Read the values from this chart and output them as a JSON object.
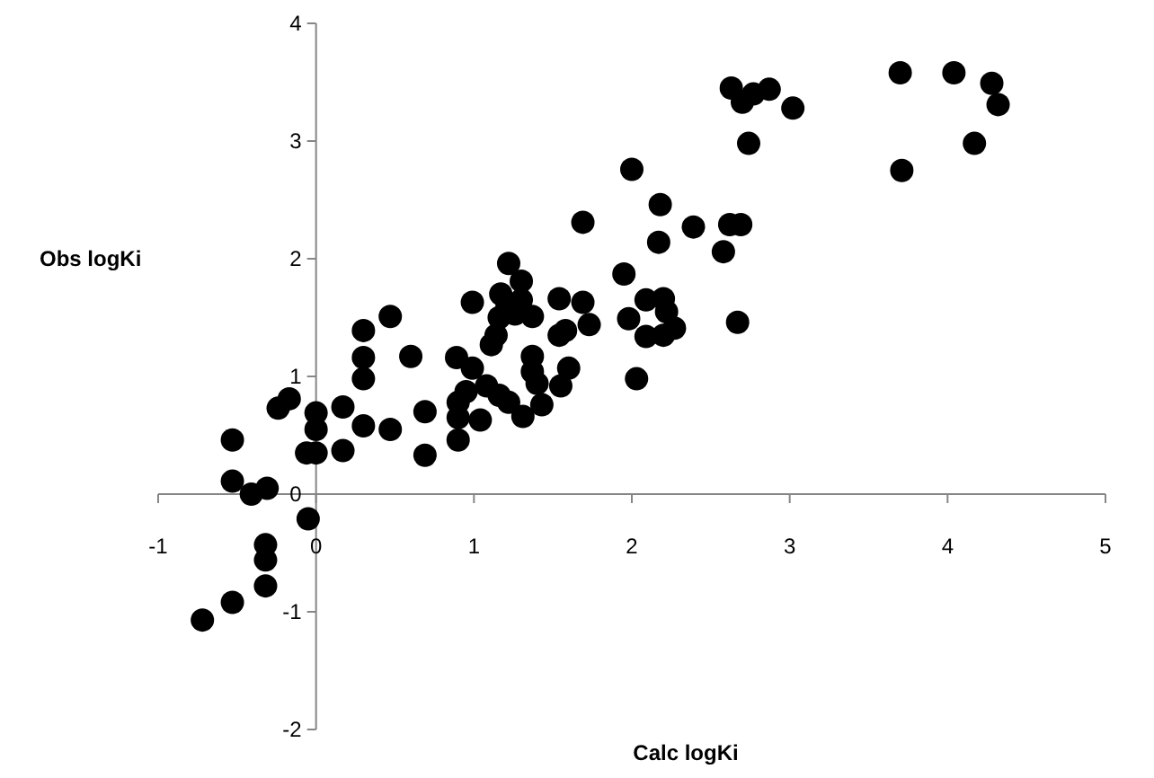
{
  "chart_data": {
    "type": "scatter",
    "xlabel": "Calc logKi",
    "ylabel": "Obs logKi",
    "xlim": [
      -1,
      5
    ],
    "ylim": [
      -2,
      4
    ],
    "xticks": [
      -1,
      0,
      1,
      2,
      3,
      4,
      5
    ],
    "yticks": [
      -2,
      -1,
      0,
      1,
      2,
      3,
      4
    ],
    "grid": false,
    "marker": "circle",
    "series": [
      {
        "color": "#000000",
        "x": [
          -0.72,
          -0.53,
          -0.32,
          -0.32,
          -0.32,
          -0.05,
          -0.53,
          -0.53,
          -0.41,
          -0.31,
          -0.24,
          -0.17,
          0,
          0,
          -0.06,
          0,
          0.17,
          0.17,
          0.3,
          0.3,
          0.3,
          0.3,
          0.47,
          0.47,
          0.6,
          0.69,
          0.69,
          0.89,
          0.9,
          0.9,
          0.9,
          0.95,
          0.99,
          0.99,
          1.04,
          1.08,
          1.16,
          1.22,
          1.31,
          1.43,
          1.37,
          1.37,
          1.4,
          1.55,
          1.6,
          1.54,
          1.58,
          1.54,
          1.69,
          1.73,
          1.11,
          1.14,
          1.16,
          1.17,
          1.22,
          1.3,
          1.3,
          1.37,
          1.26,
          1.21,
          1.95,
          1.98,
          2.09,
          2.2,
          2.22,
          2.27,
          2.09,
          2.2,
          2.03,
          2.17,
          2.58,
          2.67,
          2.18,
          2.0,
          1.69,
          2.39,
          2.62,
          2.69,
          2.63,
          2.7,
          2.77,
          2.87,
          3.02,
          2.74,
          3.7,
          4.04,
          4.28,
          4.32,
          4.17,
          3.71
        ],
        "values": [
          -1.07,
          -0.92,
          -0.78,
          -0.56,
          -0.43,
          -0.21,
          0.46,
          0.11,
          0.0,
          0.05,
          0.73,
          0.81,
          0.69,
          0.55,
          0.35,
          0.35,
          0.74,
          0.37,
          1.39,
          1.16,
          0.98,
          0.58,
          1.51,
          0.55,
          1.17,
          0.7,
          0.33,
          1.16,
          0.78,
          0.65,
          0.46,
          0.87,
          1.07,
          1.63,
          0.63,
          0.92,
          0.84,
          0.78,
          0.66,
          0.76,
          1.17,
          1.04,
          0.94,
          0.92,
          1.07,
          1.35,
          1.39,
          1.66,
          1.63,
          1.44,
          1.27,
          1.35,
          1.5,
          1.7,
          1.96,
          1.81,
          1.65,
          1.51,
          1.53,
          1.6,
          1.87,
          1.49,
          1.65,
          1.66,
          1.55,
          1.41,
          1.34,
          1.35,
          0.98,
          2.14,
          2.06,
          1.46,
          2.46,
          2.76,
          2.31,
          2.27,
          2.29,
          2.29,
          3.45,
          3.33,
          3.4,
          3.44,
          3.28,
          2.98,
          3.58,
          3.58,
          3.49,
          3.31,
          2.98,
          2.75
        ]
      }
    ]
  }
}
